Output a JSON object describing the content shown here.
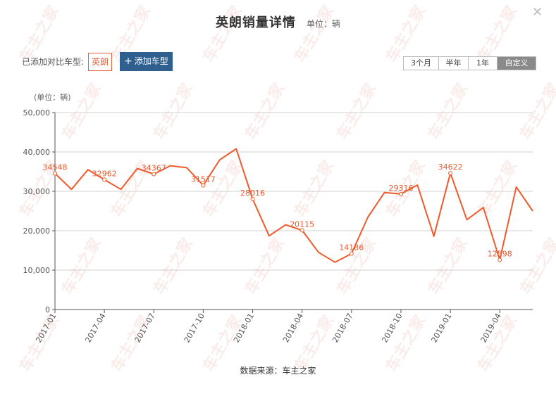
{
  "header": {
    "title": "英朗销量详情",
    "unit": "单位：辆",
    "close_glyph": "✕"
  },
  "compare": {
    "label": "已添加对比车型:",
    "model": "英朗",
    "add_plus": "+",
    "add_label": "添加车型"
  },
  "range": {
    "options": [
      "3个月",
      "半年",
      "1年",
      "自定义"
    ],
    "active_index": 3
  },
  "footer": {
    "source": "数据来源：车主之家"
  },
  "colors": {
    "line": "#f05a2a",
    "grid": "#d0d0d0",
    "axis": "#555555"
  },
  "chart_data": {
    "type": "line",
    "y_unit_label": "(单位：辆)",
    "ylim": [
      0,
      50000
    ],
    "y_ticks": [
      "0",
      "10,000",
      "20,000",
      "30,000",
      "40,000",
      "50,000"
    ],
    "x_tick_labels": [
      "2017-01",
      "2017-04",
      "2017-07",
      "2017-10",
      "2018-01",
      "2018-04",
      "2018-07",
      "2018-10",
      "2019-01",
      "2019-04"
    ],
    "x_tick_every": 3,
    "grid": true,
    "series": [
      {
        "values": [
          34548,
          30500,
          35500,
          32962,
          30500,
          35800,
          34367,
          36500,
          36000,
          31517,
          38000,
          40800,
          28016,
          18700,
          21500,
          20115,
          14500,
          12000,
          14186,
          23500,
          29700,
          29316,
          31600,
          18600,
          34622,
          22800,
          25900,
          12598,
          31100,
          25000
        ],
        "labels": [
          "34548",
          "",
          "",
          "32962",
          "",
          "",
          "34367",
          "",
          "",
          "31517",
          "",
          "",
          "28016",
          "",
          "",
          "20115",
          "",
          "",
          "14186",
          "",
          "",
          "29316",
          "",
          "",
          "34622",
          "",
          "",
          "12598",
          "",
          ""
        ]
      }
    ]
  }
}
